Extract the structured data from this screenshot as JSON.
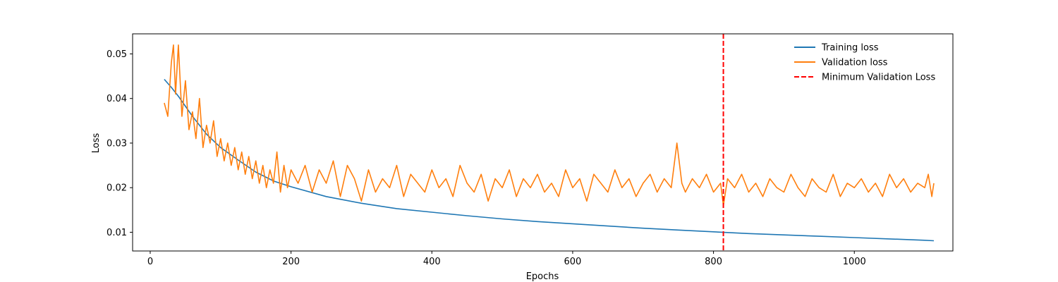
{
  "chart_data": {
    "type": "line",
    "title": "",
    "xlabel": "Epochs",
    "ylabel": "Loss",
    "xlim": [
      -25,
      1140
    ],
    "ylim": [
      0.0058,
      0.0545
    ],
    "x_ticks": [
      0,
      200,
      400,
      600,
      800,
      1000
    ],
    "x_tick_labels": [
      "0",
      "200",
      "400",
      "600",
      "800",
      "1000"
    ],
    "y_ticks": [
      0.01,
      0.02,
      0.03,
      0.04,
      0.05
    ],
    "y_tick_labels": [
      "0.01",
      "0.02",
      "0.03",
      "0.04",
      "0.05"
    ],
    "grid": false,
    "legend_position": "top-right",
    "series": [
      {
        "name": "Training loss",
        "color": "#1f77b4",
        "style": "solid",
        "x": [
          20,
          30,
          40,
          60,
          80,
          100,
          125,
          150,
          175,
          200,
          250,
          300,
          350,
          400,
          450,
          500,
          550,
          600,
          650,
          700,
          750,
          800,
          850,
          900,
          950,
          1000,
          1050,
          1100,
          1113
        ],
        "y": [
          0.0443,
          0.0425,
          0.0405,
          0.036,
          0.032,
          0.029,
          0.0262,
          0.0235,
          0.0215,
          0.0202,
          0.018,
          0.0165,
          0.0153,
          0.0145,
          0.0137,
          0.013,
          0.0124,
          0.0119,
          0.0114,
          0.0109,
          0.0105,
          0.0101,
          0.0097,
          0.0094,
          0.0091,
          0.0088,
          0.0085,
          0.0082,
          0.0081
        ]
      },
      {
        "name": "Validation loss",
        "color": "#ff7f0e",
        "style": "solid",
        "x": [
          20,
          25,
          30,
          33,
          36,
          40,
          45,
          50,
          55,
          60,
          65,
          70,
          75,
          80,
          85,
          90,
          95,
          100,
          105,
          110,
          115,
          120,
          125,
          130,
          135,
          140,
          145,
          150,
          155,
          160,
          165,
          170,
          175,
          180,
          185,
          190,
          195,
          200,
          210,
          220,
          230,
          240,
          250,
          260,
          270,
          280,
          290,
          300,
          310,
          320,
          330,
          340,
          350,
          360,
          370,
          380,
          390,
          400,
          410,
          420,
          430,
          440,
          450,
          460,
          470,
          480,
          490,
          500,
          510,
          520,
          530,
          540,
          550,
          560,
          570,
          580,
          590,
          600,
          610,
          620,
          630,
          640,
          650,
          660,
          670,
          680,
          690,
          700,
          710,
          720,
          730,
          740,
          748,
          755,
          760,
          770,
          780,
          790,
          800,
          810,
          814,
          820,
          830,
          840,
          850,
          860,
          870,
          880,
          890,
          900,
          910,
          920,
          930,
          940,
          950,
          960,
          970,
          980,
          990,
          1000,
          1010,
          1020,
          1030,
          1040,
          1050,
          1060,
          1070,
          1080,
          1090,
          1100,
          1105,
          1110,
          1113
        ],
        "y": [
          0.039,
          0.036,
          0.048,
          0.052,
          0.041,
          0.052,
          0.036,
          0.044,
          0.033,
          0.037,
          0.031,
          0.04,
          0.029,
          0.034,
          0.03,
          0.035,
          0.027,
          0.031,
          0.026,
          0.03,
          0.025,
          0.029,
          0.024,
          0.028,
          0.023,
          0.027,
          0.022,
          0.026,
          0.021,
          0.025,
          0.02,
          0.024,
          0.021,
          0.028,
          0.019,
          0.025,
          0.02,
          0.024,
          0.021,
          0.025,
          0.019,
          0.024,
          0.021,
          0.026,
          0.018,
          0.025,
          0.022,
          0.017,
          0.024,
          0.019,
          0.022,
          0.02,
          0.025,
          0.018,
          0.023,
          0.021,
          0.019,
          0.024,
          0.02,
          0.022,
          0.018,
          0.025,
          0.021,
          0.019,
          0.023,
          0.017,
          0.022,
          0.02,
          0.024,
          0.018,
          0.022,
          0.02,
          0.023,
          0.019,
          0.021,
          0.018,
          0.024,
          0.02,
          0.022,
          0.017,
          0.023,
          0.021,
          0.019,
          0.024,
          0.02,
          0.022,
          0.018,
          0.021,
          0.023,
          0.019,
          0.022,
          0.02,
          0.03,
          0.021,
          0.019,
          0.022,
          0.02,
          0.023,
          0.019,
          0.021,
          0.016,
          0.022,
          0.02,
          0.023,
          0.019,
          0.021,
          0.018,
          0.022,
          0.02,
          0.019,
          0.023,
          0.02,
          0.018,
          0.022,
          0.02,
          0.019,
          0.023,
          0.018,
          0.021,
          0.02,
          0.022,
          0.019,
          0.021,
          0.018,
          0.023,
          0.02,
          0.022,
          0.019,
          0.021,
          0.02,
          0.023,
          0.018,
          0.021
        ]
      },
      {
        "name": "Minimum Validation Loss",
        "color": "#ff0000",
        "style": "dashed",
        "type": "vline",
        "x": 814
      }
    ]
  }
}
